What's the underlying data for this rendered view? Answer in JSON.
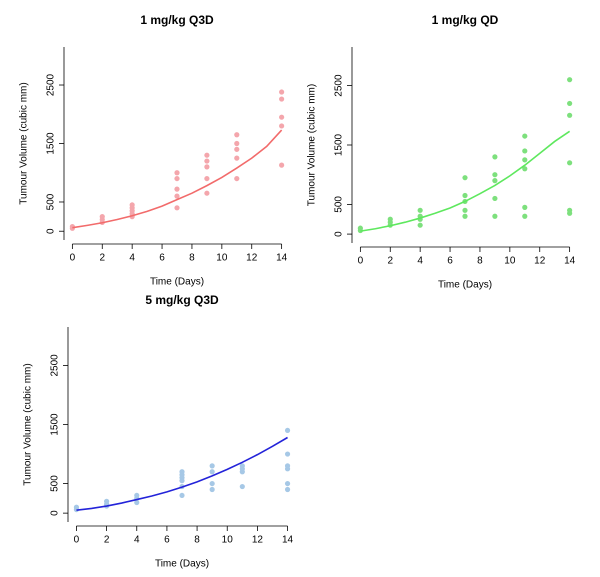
{
  "chart_data": [
    {
      "type": "scatter",
      "title": "1 mg/kg Q3D",
      "x_label": "Time (Days)",
      "y_label": "Tumour Volume (cubic mm)",
      "xlim": [
        -0.56,
        14.56
      ],
      "xticks": [
        0,
        2,
        4,
        6,
        8,
        10,
        12,
        14
      ],
      "ylim": [
        -150,
        3150
      ],
      "yticks": [
        0,
        500,
        1500,
        2500
      ],
      "points": {
        "color": "#f4a6ac",
        "x": [
          0,
          0,
          2,
          2,
          2,
          4,
          4,
          4,
          4,
          4,
          7,
          7,
          7,
          7,
          7,
          9,
          9,
          9,
          9,
          9,
          11,
          11,
          11,
          11,
          11,
          14,
          14,
          14,
          14,
          14
        ],
        "y": [
          50,
          80,
          150,
          200,
          250,
          250,
          300,
          350,
          400,
          450,
          1000,
          900,
          720,
          600,
          400,
          1300,
          1200,
          1100,
          900,
          650,
          1650,
          1500,
          1400,
          1250,
          900,
          2380,
          2260,
          1950,
          1800,
          1130
        ]
      },
      "fit": {
        "color": "#f26b6b",
        "x": [
          0,
          1,
          2,
          3,
          4,
          5,
          6,
          7,
          8,
          9,
          10,
          11,
          12,
          13,
          14
        ],
        "y": [
          60,
          100,
          145,
          200,
          265,
          340,
          430,
          540,
          650,
          780,
          920,
          1080,
          1250,
          1450,
          1730
        ]
      }
    },
    {
      "type": "scatter",
      "title": "1 mg/kg QD",
      "x_label": "Time (Days)",
      "y_label": "Tumour Volume (cubic mm)",
      "xlim": [
        -0.56,
        14.56
      ],
      "xticks": [
        0,
        2,
        4,
        6,
        8,
        10,
        12,
        14
      ],
      "ylim": [
        -150,
        3150
      ],
      "yticks": [
        0,
        500,
        1500,
        2500
      ],
      "points": {
        "color": "#7de07d",
        "x": [
          0,
          0,
          2,
          2,
          2,
          4,
          4,
          4,
          4,
          7,
          7,
          7,
          7,
          7,
          9,
          9,
          9,
          9,
          9,
          11,
          11,
          11,
          11,
          11,
          11,
          14,
          14,
          14,
          14,
          14,
          14
        ],
        "y": [
          60,
          100,
          150,
          200,
          250,
          150,
          250,
          300,
          400,
          300,
          400,
          550,
          650,
          950,
          300,
          600,
          900,
          1000,
          1300,
          300,
          450,
          1100,
          1250,
          1400,
          1650,
          350,
          400,
          1200,
          2000,
          2200,
          2600
        ]
      },
      "fit": {
        "color": "#5ee85e",
        "x": [
          0,
          1,
          2,
          3,
          4,
          5,
          6,
          7,
          8,
          9,
          10,
          11,
          12,
          13,
          14
        ],
        "y": [
          50,
          90,
          140,
          200,
          270,
          350,
          440,
          550,
          680,
          820,
          980,
          1160,
          1360,
          1560,
          1730
        ]
      }
    },
    {
      "type": "scatter",
      "title": "5 mg/kg Q3D",
      "x_label": "Time (Days)",
      "y_label": "Tumour Volume (cubic mm)",
      "xlim": [
        -0.56,
        14.56
      ],
      "xticks": [
        0,
        2,
        4,
        6,
        8,
        10,
        12,
        14
      ],
      "ylim": [
        -150,
        3150
      ],
      "yticks": [
        0,
        500,
        1500,
        2500
      ],
      "points": {
        "color": "#a6c8e6",
        "x": [
          0,
          0,
          2,
          2,
          2,
          4,
          4,
          4,
          7,
          7,
          7,
          7,
          7,
          7,
          9,
          9,
          9,
          9,
          11,
          11,
          11,
          11,
          14,
          14,
          14,
          14,
          14,
          14
        ],
        "y": [
          60,
          100,
          120,
          150,
          200,
          180,
          250,
          300,
          300,
          450,
          550,
          600,
          650,
          700,
          400,
          500,
          700,
          800,
          450,
          700,
          750,
          800,
          400,
          500,
          750,
          800,
          1000,
          1400
        ]
      },
      "fit": {
        "color": "#2323d9",
        "x": [
          0,
          1,
          2,
          3,
          4,
          5,
          6,
          7,
          8,
          9,
          10,
          11,
          12,
          13,
          14
        ],
        "y": [
          50,
          80,
          120,
          170,
          230,
          290,
          360,
          440,
          530,
          630,
          740,
          860,
          990,
          1130,
          1280
        ]
      }
    }
  ]
}
